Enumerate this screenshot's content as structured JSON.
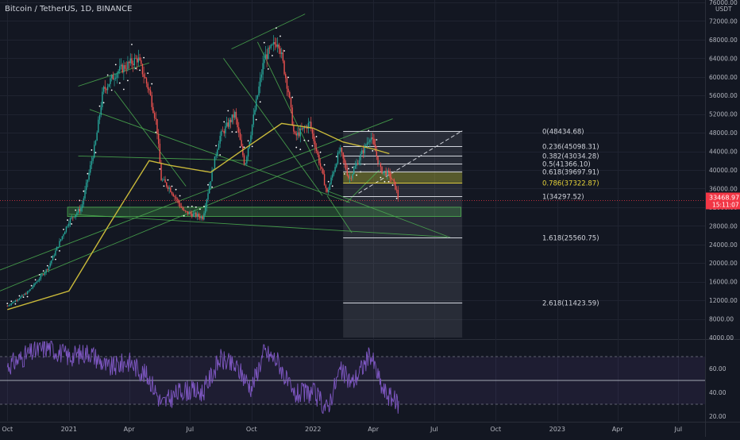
{
  "header": {
    "title": "Bitcoin / TetherUS, 1D, BINANCE"
  },
  "price_axis": {
    "unit": "USDT",
    "ticks": [
      "76000.00",
      "72000.00",
      "68000.00",
      "64000.00",
      "60000.00",
      "56000.00",
      "52000.00",
      "48000.00",
      "44000.00",
      "40000.00",
      "36000.00",
      "32000.00",
      "28000.00",
      "24000.00",
      "20000.00",
      "16000.00",
      "12000.00",
      "8000.00",
      "4000.00"
    ],
    "last_price": "33468.97",
    "countdown": "15:11:07"
  },
  "rsi_axis": {
    "ticks": [
      "60.00",
      "40.00",
      "20.00"
    ]
  },
  "time_axis": {
    "ticks": [
      "Oct",
      "2021",
      "Apr",
      "Jul",
      "Oct",
      "2022",
      "Apr",
      "Jul",
      "Oct",
      "2023",
      "Apr",
      "Jul"
    ]
  },
  "colors": {
    "background": "#131722",
    "up": "#26a69a",
    "down": "#ef5350",
    "ma": "#c9b93a",
    "trendline": "#4caf50",
    "fib_zone": "#c8c814",
    "rsi": "#7e57c2",
    "last_price_badge": "#f23645"
  },
  "chart_data": [
    {
      "type": "line",
      "subtype": "candlestick",
      "title": "Bitcoin / TetherUS, 1D, BINANCE",
      "ylabel": "USDT",
      "ylim": [
        4000,
        76000
      ],
      "x_range": [
        "2020-09-20",
        "2023-08-10"
      ],
      "x_ticks": [
        "Oct",
        "2021",
        "Apr",
        "Jul",
        "Oct",
        "2022",
        "Apr",
        "Jul",
        "Oct",
        "2023",
        "Apr",
        "Jul"
      ],
      "grid": true,
      "series": [
        {
          "kind": "price",
          "x": [
            "2020-10-01",
            "2020-11-01",
            "2020-12-01",
            "2021-01-01",
            "2021-01-20",
            "2021-02-10",
            "2021-02-21",
            "2021-03-13",
            "2021-04-14",
            "2021-05-01",
            "2021-05-12",
            "2021-05-19",
            "2021-06-01",
            "2021-06-22",
            "2021-07-20",
            "2021-08-14",
            "2021-09-06",
            "2021-09-21",
            "2021-10-20",
            "2021-11-10",
            "2021-11-25",
            "2021-12-04",
            "2021-12-27",
            "2022-01-22",
            "2022-02-10",
            "2022-02-24",
            "2022-03-28",
            "2022-04-12",
            "2022-04-25",
            "2022-05-05",
            "2022-05-09"
          ],
          "y": [
            10800,
            13800,
            19000,
            29000,
            32000,
            46000,
            57000,
            61000,
            64000,
            57000,
            50000,
            38000,
            36000,
            31000,
            29800,
            47000,
            52000,
            41000,
            64000,
            68000,
            57000,
            47000,
            50000,
            35000,
            44500,
            38000,
            47500,
            40000,
            39000,
            36000,
            33469
          ]
        },
        {
          "kind": "moving-average",
          "x": [
            "2020-10-01",
            "2021-01-01",
            "2021-03-01",
            "2021-05-01",
            "2021-06-01",
            "2021-08-01",
            "2021-09-15",
            "2021-11-15",
            "2022-01-01",
            "2022-02-15",
            "2022-04-01",
            "2022-04-25"
          ],
          "y": [
            10000,
            14000,
            28000,
            42000,
            41000,
            39500,
            44000,
            50000,
            49000,
            46000,
            44500,
            43500
          ]
        }
      ],
      "fibonacci": [
        {
          "ratio": "0",
          "price": 48434.68,
          "label": "0(48434.68)"
        },
        {
          "ratio": "0.236",
          "price": 45098.31,
          "label": "0.236(45098.31)"
        },
        {
          "ratio": "0.382",
          "price": 43034.28,
          "label": "0.382(43034.28)"
        },
        {
          "ratio": "0.5",
          "price": 41366.1,
          "label": "0.5(41366.10)"
        },
        {
          "ratio": "0.618",
          "price": 39697.91,
          "label": "0.618(39697.91)"
        },
        {
          "ratio": "0.786",
          "price": 37322.87,
          "label": "0.786(37322.87)"
        },
        {
          "ratio": "1",
          "price": 34297.52,
          "label": "1(34297.52)"
        },
        {
          "ratio": "1.618",
          "price": 25560.75,
          "label": "1.618(25560.75)"
        },
        {
          "ratio": "2.618",
          "price": 11423.59,
          "label": "2.618(11423.59)"
        }
      ],
      "support_zone": {
        "x_range": [
          "2020-12-30",
          "2022-08-10"
        ],
        "y_range": [
          30000,
          32000
        ]
      },
      "last_price": 33468.97
    },
    {
      "type": "line",
      "subtype": "rsi",
      "ylim": [
        16,
        84
      ],
      "y_ticks": [
        60,
        40,
        20
      ],
      "bands": [
        70,
        30
      ],
      "midline": 50,
      "series": [
        {
          "kind": "rsi",
          "x": [
            "2020-10-01",
            "2020-11-01",
            "2020-12-01",
            "2021-01-01",
            "2021-02-01",
            "2021-03-01",
            "2021-04-01",
            "2021-05-01",
            "2021-05-20",
            "2021-06-20",
            "2021-07-20",
            "2021-08-15",
            "2021-09-10",
            "2021-10-01",
            "2021-10-20",
            "2021-11-10",
            "2021-12-01",
            "2022-01-01",
            "2022-01-22",
            "2022-02-10",
            "2022-03-01",
            "2022-03-28",
            "2022-04-15",
            "2022-05-09"
          ],
          "y": [
            62,
            72,
            78,
            70,
            74,
            60,
            66,
            52,
            30,
            42,
            40,
            68,
            60,
            44,
            74,
            66,
            38,
            40,
            26,
            58,
            48,
            72,
            42,
            30
          ]
        }
      ]
    }
  ]
}
